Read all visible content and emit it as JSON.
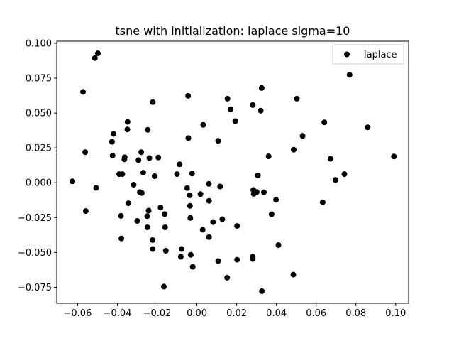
{
  "chart_data": {
    "type": "scatter",
    "title": "tsne with initialization: laplace sigma=10",
    "xlabel": "",
    "ylabel": "",
    "xlim": [
      -0.0705,
      0.1065
    ],
    "ylim": [
      -0.0865,
      0.1015
    ],
    "xticks": [
      -0.06,
      -0.04,
      -0.02,
      0.0,
      0.02,
      0.04,
      0.06,
      0.08,
      0.1
    ],
    "xtick_labels": [
      "−0.06",
      "−0.04",
      "−0.02",
      "0.00",
      "0.02",
      "0.04",
      "0.06",
      "0.08",
      "0.10"
    ],
    "yticks": [
      -0.075,
      -0.05,
      -0.025,
      0.0,
      0.025,
      0.05,
      0.075,
      0.1
    ],
    "ytick_labels": [
      "−0.075",
      "−0.050",
      "−0.025",
      "0.000",
      "0.025",
      "0.050",
      "0.075",
      "0.100"
    ],
    "grid": false,
    "legend_position": "top-right",
    "series": [
      {
        "name": "laplace",
        "color": "#000000",
        "points": [
          [
            -0.0498,
            0.0928
          ],
          [
            -0.0513,
            0.0894
          ],
          [
            -0.0573,
            0.0651
          ],
          [
            -0.0222,
            0.0578
          ],
          [
            -0.0044,
            0.0623
          ],
          [
            0.0326,
            0.068
          ],
          [
            0.0503,
            0.0603
          ],
          [
            0.0768,
            0.0774
          ],
          [
            0.0154,
            0.0603
          ],
          [
            0.0169,
            0.0527
          ],
          [
            0.0281,
            0.0557
          ],
          [
            0.0321,
            0.0517
          ],
          [
            0.0193,
            0.0442
          ],
          [
            0.0032,
            0.0415
          ],
          [
            -0.0349,
            0.0436
          ],
          [
            -0.035,
            0.0382
          ],
          [
            -0.0419,
            0.035
          ],
          [
            -0.0427,
            0.0294
          ],
          [
            -0.0247,
            0.0379
          ],
          [
            -0.0043,
            0.032
          ],
          [
            0.0107,
            0.03
          ],
          [
            -0.0562,
            0.0219
          ],
          [
            -0.0424,
            0.0194
          ],
          [
            -0.0363,
            0.0182
          ],
          [
            -0.0365,
            0.0168
          ],
          [
            -0.028,
            0.0219
          ],
          [
            -0.0294,
            0.0162
          ],
          [
            -0.0239,
            0.0177
          ],
          [
            -0.0194,
            0.0181
          ],
          [
            -0.0087,
            0.0132
          ],
          [
            0.0361,
            0.0189
          ],
          [
            0.0487,
            0.0237
          ],
          [
            0.0532,
            0.0336
          ],
          [
            0.0641,
            0.0433
          ],
          [
            0.0859,
            0.0397
          ],
          [
            0.0991,
            0.0188
          ],
          [
            0.0672,
            0.0172
          ],
          [
            0.0742,
            0.0062
          ],
          [
            0.0697,
            0.002
          ],
          [
            -0.0626,
            0.001
          ],
          [
            -0.0507,
            -0.0037
          ],
          [
            -0.0391,
            0.0062
          ],
          [
            -0.0375,
            0.0062
          ],
          [
            -0.027,
            0.0072
          ],
          [
            -0.0213,
            0.0047
          ],
          [
            -0.01,
            0.0062
          ],
          [
            -0.0024,
            0.0066
          ],
          [
            -0.0318,
            -0.0014
          ],
          [
            -0.0287,
            -0.0067
          ],
          [
            -0.0277,
            -0.0074
          ],
          [
            -0.0049,
            -0.0038
          ],
          [
            -0.0036,
            -0.009
          ],
          [
            0.0018,
            -0.0082
          ],
          [
            0.006,
            -0.0008
          ],
          [
            0.0117,
            -0.0027
          ],
          [
            0.0307,
            0.0052
          ],
          [
            0.0284,
            -0.0052
          ],
          [
            0.0286,
            -0.008
          ],
          [
            0.0301,
            -0.0067
          ],
          [
            0.0337,
            -0.0068
          ],
          [
            0.0398,
            -0.0122
          ],
          [
            0.0633,
            -0.014
          ],
          [
            -0.0559,
            -0.0203
          ],
          [
            -0.0382,
            -0.0238
          ],
          [
            -0.0345,
            -0.0147
          ],
          [
            -0.03,
            -0.0274
          ],
          [
            -0.0243,
            -0.02
          ],
          [
            -0.025,
            -0.024
          ],
          [
            -0.0183,
            -0.0178
          ],
          [
            -0.0162,
            -0.0225
          ],
          [
            -0.0035,
            -0.0166
          ],
          [
            -0.0033,
            -0.0252
          ],
          [
            0.0061,
            -0.013
          ],
          [
            0.0081,
            -0.0282
          ],
          [
            0.0128,
            -0.0262
          ],
          [
            0.0202,
            -0.031
          ],
          [
            0.0376,
            -0.0226
          ],
          [
            -0.0249,
            -0.032
          ],
          [
            -0.016,
            -0.032
          ],
          [
            0.0029,
            -0.0337
          ],
          [
            0.0061,
            -0.039
          ],
          [
            -0.038,
            -0.04
          ],
          [
            -0.0223,
            -0.0411
          ],
          [
            -0.0222,
            -0.0475
          ],
          [
            -0.0156,
            -0.0488
          ],
          [
            -0.0077,
            -0.0475
          ],
          [
            -0.0081,
            -0.0531
          ],
          [
            -0.0031,
            -0.0517
          ],
          [
            0.041,
            -0.0447
          ],
          [
            -0.0021,
            -0.0603
          ],
          [
            0.0107,
            -0.0562
          ],
          [
            0.0202,
            -0.0552
          ],
          [
            0.0281,
            -0.0531
          ],
          [
            0.0281,
            -0.0547
          ],
          [
            0.0152,
            -0.0681
          ],
          [
            0.0485,
            -0.0659
          ],
          [
            -0.0166,
            -0.0745
          ],
          [
            0.0327,
            -0.0778
          ]
        ]
      }
    ]
  }
}
